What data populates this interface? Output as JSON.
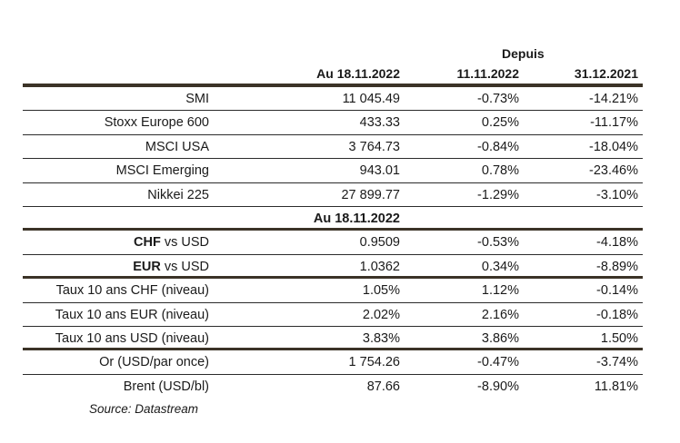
{
  "header": {
    "group_label": "Depuis",
    "columns": [
      "Au 18.11.2022",
      "11.11.2022",
      "31.12.2021"
    ]
  },
  "rows": [
    {
      "label": "SMI",
      "values": [
        "11 045.49",
        "-0.73%",
        "-14.21%"
      ],
      "border": "thin"
    },
    {
      "label": "Stoxx Europe 600",
      "values": [
        "433.33",
        "0.25%",
        "-11.17%"
      ],
      "border": "thin"
    },
    {
      "label": "MSCI USA",
      "values": [
        "3 764.73",
        "-0.84%",
        "-18.04%"
      ],
      "border": "thin"
    },
    {
      "label": "MSCI Emerging",
      "values": [
        "943.01",
        "0.78%",
        "-23.46%"
      ],
      "border": "thin"
    },
    {
      "label": "Nikkei 225",
      "values": [
        "27 899.77",
        "-1.29%",
        "-3.10%"
      ],
      "border": "thin"
    },
    {
      "section": "Au 18.11.2022",
      "border": "thick"
    },
    {
      "label_bold": "CHF",
      "label": " vs USD",
      "values": [
        "0.9509",
        "-0.53%",
        "-4.18%"
      ],
      "border": "thin"
    },
    {
      "label_bold": "EUR",
      "label": " vs USD",
      "values": [
        "1.0362",
        "0.34%",
        "-8.89%"
      ],
      "border": "thick"
    },
    {
      "label": "Taux 10 ans CHF (niveau)",
      "values": [
        "1.05%",
        "1.12%",
        "-0.14%"
      ],
      "border": "thin"
    },
    {
      "label": "Taux 10 ans EUR (niveau)",
      "values": [
        "2.02%",
        "2.16%",
        "-0.18%"
      ],
      "border": "thin"
    },
    {
      "label": "Taux 10 ans USD (niveau)",
      "values": [
        "3.83%",
        "3.86%",
        "1.50%"
      ],
      "border": "thick"
    },
    {
      "label": "Or (USD/par once)",
      "values": [
        "1 754.26",
        "-0.47%",
        "-3.74%"
      ],
      "border": "thin"
    },
    {
      "label": "Brent (USD/bl)",
      "values": [
        "87.66",
        "-8.90%",
        "11.81%"
      ],
      "border": "none"
    }
  ],
  "source": "Source: Datastream"
}
